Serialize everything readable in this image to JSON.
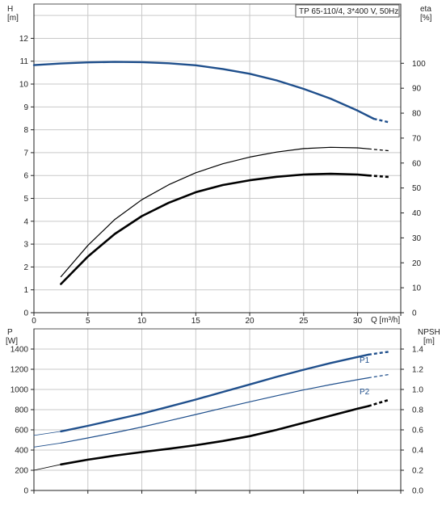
{
  "chart_data": [
    {
      "type": "line",
      "title": "TP 65-110/4, 3*400 V, 50Hz",
      "xlabel": "Q [m³/h]",
      "xlim": [
        0,
        34
      ],
      "xticks": [
        0,
        5,
        10,
        15,
        20,
        25,
        30
      ],
      "grid": true,
      "y_axes": {
        "left": {
          "label": "H",
          "unit": "[m]",
          "lim": [
            0,
            13.5
          ],
          "ticks": [
            0,
            1,
            2,
            3,
            4,
            5,
            6,
            7,
            8,
            9,
            10,
            11,
            12
          ]
        },
        "right": {
          "label": "eta",
          "unit": "[%]",
          "lim": [
            0,
            123.75
          ],
          "ticks": [
            0,
            10,
            20,
            30,
            40,
            50,
            60,
            70,
            80,
            90,
            100
          ]
        }
      },
      "series": [
        {
          "name": "",
          "axis": "left",
          "color": "#1f4f8c",
          "width": 2.4,
          "x": [
            0,
            2.5,
            5,
            7.5,
            10,
            12.5,
            15,
            17.5,
            20,
            22.5,
            25,
            27.5,
            30,
            31.5
          ],
          "y": [
            10.83,
            10.9,
            10.95,
            10.97,
            10.96,
            10.91,
            10.82,
            10.66,
            10.45,
            10.16,
            9.79,
            9.36,
            8.84,
            8.48
          ],
          "dashed_x": [
            31.5,
            33
          ],
          "dashed_y": [
            8.48,
            8.32
          ]
        },
        {
          "name": "",
          "axis": "right",
          "color": "#000000",
          "width": 2.6,
          "x": [
            2.5,
            5,
            7.5,
            10,
            12.5,
            15,
            17.5,
            20,
            22.5,
            25,
            27.5,
            30,
            31
          ],
          "y": [
            11.5,
            22.5,
            31.6,
            38.7,
            44.1,
            48.3,
            51.2,
            53.1,
            54.5,
            55.4,
            55.7,
            55.4,
            55.0
          ],
          "dashed_x": [
            31,
            33
          ],
          "dashed_y": [
            55.0,
            54.4
          ]
        },
        {
          "name": "",
          "axis": "right",
          "color": "#000000",
          "width": 1.2,
          "x": [
            2.5,
            5,
            7.5,
            10,
            12.5,
            15,
            17.5,
            20,
            22.5,
            25,
            27.5,
            30,
            31
          ],
          "y": [
            14.4,
            27.0,
            37.4,
            45.3,
            51.3,
            56.1,
            59.7,
            62.4,
            64.4,
            65.8,
            66.3,
            66.1,
            65.7
          ],
          "dashed_x": [
            31,
            33
          ],
          "dashed_y": [
            65.7,
            64.9
          ]
        }
      ]
    },
    {
      "type": "line",
      "xlim": [
        0,
        34
      ],
      "xticks": [
        0,
        5,
        10,
        15,
        20,
        25,
        30
      ],
      "grid": true,
      "y_axes": {
        "left": {
          "label": "P",
          "unit": "[W]",
          "lim": [
            0,
            1600
          ],
          "ticks": [
            0,
            200,
            400,
            600,
            800,
            1000,
            1200,
            1400
          ]
        },
        "right": {
          "label": "NPSH",
          "unit": "[m]",
          "lim": [
            0,
            1.6
          ],
          "ticks": [
            0.0,
            0.2,
            0.4,
            0.6,
            0.8,
            1.0,
            1.2,
            1.4
          ],
          "tick_labels": [
            "0.0",
            "0.2",
            "0.4",
            "0.6",
            "0.8",
            "1.0",
            "1.2",
            "1.4"
          ]
        }
      },
      "series": [
        {
          "name": "P1",
          "axis": "left",
          "color": "#1f4f8c",
          "width": 2.4,
          "x": [
            2.5,
            5,
            7.5,
            10,
            12.5,
            15,
            17.5,
            20,
            22.5,
            25,
            27.5,
            30,
            31
          ],
          "y": [
            585,
            640,
            700,
            760,
            830,
            900,
            975,
            1050,
            1125,
            1195,
            1262,
            1322,
            1345
          ],
          "dashed_x": [
            31,
            33
          ],
          "dashed_y": [
            1345,
            1375
          ]
        },
        {
          "name": "",
          "axis": "left",
          "color": "#1f4f8c",
          "width": 0.8,
          "x": [
            0,
            2.5
          ],
          "y": [
            545,
            585
          ]
        },
        {
          "name": "P2",
          "axis": "left",
          "color": "#1f4f8c",
          "width": 1.2,
          "x": [
            2.5,
            5,
            7.5,
            10,
            12.5,
            15,
            17.5,
            20,
            22.5,
            25,
            27.5,
            30,
            31
          ],
          "y": [
            470,
            520,
            572,
            628,
            690,
            752,
            815,
            878,
            938,
            995,
            1048,
            1097,
            1115
          ],
          "dashed_x": [
            31,
            33
          ],
          "dashed_y": [
            1115,
            1150
          ]
        },
        {
          "name": "",
          "axis": "left",
          "color": "#1f4f8c",
          "width": 0.8,
          "x": [
            0,
            2.5
          ],
          "y": [
            430,
            470
          ]
        },
        {
          "name": "",
          "axis": "right",
          "color": "#000000",
          "width": 2.6,
          "x": [
            2.5,
            5,
            7.5,
            10,
            12.5,
            15,
            17.5,
            20,
            22.5,
            25,
            27.5,
            30,
            31
          ],
          "y": [
            0.258,
            0.305,
            0.345,
            0.38,
            0.413,
            0.448,
            0.49,
            0.538,
            0.6,
            0.67,
            0.74,
            0.81,
            0.835
          ],
          "dashed_x": [
            31,
            33
          ],
          "dashed_y": [
            0.835,
            0.9
          ]
        },
        {
          "name": "",
          "axis": "right",
          "color": "#000000",
          "width": 0.8,
          "x": [
            0,
            2.5
          ],
          "y": [
            0.2,
            0.258
          ]
        }
      ]
    }
  ]
}
